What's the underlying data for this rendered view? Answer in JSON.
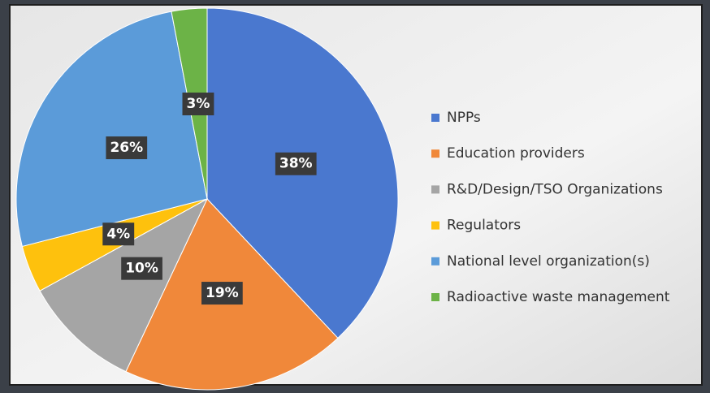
{
  "chart_data": {
    "type": "pie",
    "categories": [
      "NPPs",
      "Education providers",
      "R&D/Design/TSO Organizations",
      "Regulators",
      "National level organization(s)",
      "Radioactive waste management"
    ],
    "values": [
      38,
      19,
      10,
      4,
      26,
      3
    ],
    "value_labels": [
      "38%",
      "19%",
      "10%",
      "4%",
      "26%",
      "3%"
    ],
    "colors": [
      "#4a78cf",
      "#f0883a",
      "#a5a5a5",
      "#fec10d",
      "#5b9bd9",
      "#6cb347"
    ],
    "legend": "right"
  }
}
